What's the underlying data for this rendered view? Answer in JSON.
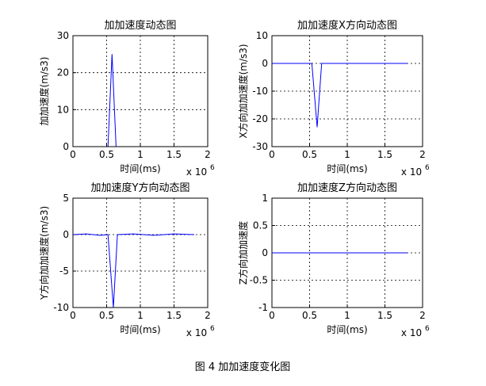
{
  "chart_data": [
    {
      "type": "line",
      "title": "加加速度动态图",
      "xlabel": "时间(ms)",
      "ylabel": "加加速度(m/s3)",
      "x_scale_base": "x 10",
      "x_scale_exponent": "6",
      "x": [
        0,
        0.52,
        0.58,
        0.64,
        1.8
      ],
      "values": [
        0,
        0,
        25,
        0,
        0
      ],
      "color": "#0000ff",
      "xlim": [
        0,
        2
      ],
      "xticks": [
        0,
        0.5,
        1,
        1.5,
        2
      ],
      "ylim": [
        0,
        30
      ],
      "yticks": [
        0,
        10,
        20,
        30
      ],
      "grid": true
    },
    {
      "type": "line",
      "title": "加加速度X方向动态图",
      "xlabel": "时间(ms)",
      "ylabel": "X方向加加速度(m/s3)",
      "x_scale_base": "x 10",
      "x_scale_exponent": "6",
      "x": [
        0,
        0.53,
        0.6,
        0.66,
        1.8
      ],
      "values": [
        0,
        0,
        -23,
        0,
        0
      ],
      "color": "#0000ff",
      "xlim": [
        0,
        2
      ],
      "xticks": [
        0,
        0.5,
        1,
        1.5,
        2
      ],
      "ylim": [
        -30,
        10
      ],
      "yticks": [
        -30,
        -20,
        -10,
        0,
        10
      ],
      "grid": true
    },
    {
      "type": "line",
      "title": "加加速度Y方向动态图",
      "xlabel": "时间(ms)",
      "ylabel": "Y方向加加速度(m/s3)",
      "x_scale_base": "x 10",
      "x_scale_exponent": "6",
      "x": [
        0,
        0.2,
        0.4,
        0.52,
        0.6,
        0.66,
        0.9,
        1.2,
        1.5,
        1.8
      ],
      "values": [
        0,
        0.1,
        -0.1,
        0,
        -10,
        0,
        0.1,
        -0.1,
        0.1,
        0
      ],
      "color": "#0000ff",
      "xlim": [
        0,
        2
      ],
      "xticks": [
        0,
        0.5,
        1,
        1.5,
        2
      ],
      "ylim": [
        -10,
        5
      ],
      "yticks": [
        -10,
        -5,
        0,
        5
      ],
      "grid": true
    },
    {
      "type": "line",
      "title": "加加速度Z方向动态图",
      "xlabel": "时间(ms)",
      "ylabel": "Z方向加加速度",
      "x_scale_base": "x 10",
      "x_scale_exponent": "6",
      "x": [
        0,
        1.8
      ],
      "values": [
        0,
        0
      ],
      "color": "#0000ff",
      "xlim": [
        0,
        2
      ],
      "xticks": [
        0,
        0.5,
        1,
        1.5,
        2
      ],
      "ylim": [
        -1,
        1
      ],
      "yticks": [
        -1,
        -0.5,
        0,
        0.5,
        1
      ],
      "grid": true
    }
  ],
  "caption": "图 4  加加速度变化图"
}
